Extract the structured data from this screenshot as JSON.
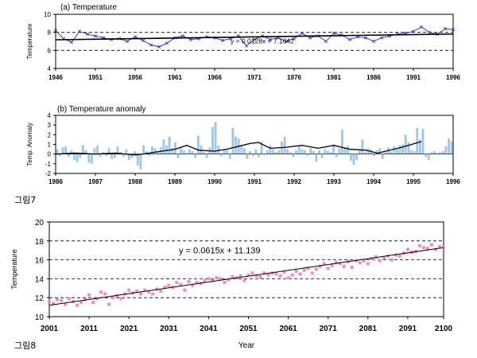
{
  "captions": {
    "fig7": "그림7",
    "fig8": "그림8"
  },
  "colors": {
    "series_a": "#3b3fa8",
    "trend": "#000000",
    "bar": "#9ec6e8",
    "running_mean": "#000000",
    "series_c": "#f08fbf"
  },
  "chart_data": [
    {
      "type": "line",
      "title": "(a)  Temperature",
      "xlabel": "",
      "ylabel": "Temperature",
      "xlim": [
        1946,
        1996
      ],
      "ylim": [
        4,
        10
      ],
      "yticks": [
        4,
        6,
        8,
        10
      ],
      "xticks": [
        "1946",
        "1951",
        "1956",
        "1961",
        "1966",
        "1971",
        "1976",
        "1981",
        "1986",
        "1991",
        "1996"
      ],
      "reference_lines": [
        6,
        8
      ],
      "equation": "y = 0.0128x + 7.1642",
      "trend": {
        "slope": 0.0128,
        "intercept": 7.1642
      },
      "series": [
        {
          "x": [
            1946,
            1947,
            1948,
            1949,
            1950,
            1951,
            1952,
            1953,
            1954,
            1955,
            1956,
            1957,
            1958,
            1959,
            1960,
            1961,
            1962,
            1963,
            1964,
            1965,
            1966,
            1967,
            1968,
            1969,
            1970,
            1971,
            1972,
            1973,
            1974,
            1975,
            1976,
            1977,
            1978,
            1979,
            1980,
            1981,
            1982,
            1983,
            1984,
            1985,
            1986,
            1987,
            1988,
            1989,
            1990,
            1991,
            1992,
            1993,
            1994,
            1995,
            1996
          ],
          "values": [
            8.2,
            7.3,
            6.9,
            8.1,
            7.8,
            7.6,
            7.4,
            7.2,
            7.3,
            7.0,
            7.5,
            7.1,
            6.6,
            6.4,
            6.8,
            7.4,
            7.6,
            7.2,
            7.3,
            7.5,
            7.4,
            7.1,
            7.3,
            7.6,
            6.5,
            7.2,
            7.6,
            7.2,
            7.4,
            7.0,
            7.3,
            7.9,
            7.4,
            7.6,
            7.0,
            7.9,
            7.7,
            7.2,
            7.5,
            7.4,
            7.0,
            7.4,
            7.6,
            7.8,
            7.9,
            8.1,
            8.6,
            8.0,
            7.8,
            8.4,
            8.3
          ]
        }
      ]
    },
    {
      "type": "bar",
      "title": "(b) Temperature anomaly",
      "xlabel": "",
      "ylabel": "Temp. Anomaly",
      "xlim": [
        1986,
        1996
      ],
      "ylim": [
        -2,
        4
      ],
      "yticks": [
        -2,
        -1,
        0,
        1,
        2,
        3,
        4
      ],
      "xticks": [
        "1986",
        "1987",
        "1988",
        "1989",
        "1990",
        "1991",
        "1992",
        "1993",
        "1994",
        "1995",
        "1996"
      ],
      "bar_values": [
        0.5,
        -0.2,
        0.7,
        0.8,
        -0.3,
        0.4,
        -0.6,
        -0.8,
        -0.4,
        0.9,
        0.4,
        -0.9,
        -1.0,
        0.6,
        0.9,
        -0.3,
        0.2,
        -0.2,
        0.6,
        -0.5,
        -0.4,
        0.8,
        0.2,
        -0.3,
        0.5,
        -0.6,
        -0.4,
        0.3,
        -1.2,
        -1.6,
        0.9,
        0.3,
        -0.2,
        0.8,
        0.6,
        0.3,
        0.7,
        1.5,
        0.9,
        1.8,
        0.6,
        1.2,
        -0.4,
        0.6,
        0.4,
        0.1,
        0.5,
        0.3,
        -0.4,
        1.9,
        0.9,
        0.2,
        -0.4,
        0.7,
        2.8,
        3.3,
        0.9,
        -0.2,
        0.5,
        0.4,
        -0.5,
        2.7,
        1.8,
        1.6,
        0.8,
        0.6,
        -0.5,
        0.3,
        -0.2,
        0.5,
        -0.3,
        1.3,
        -0.1,
        0.4,
        0.9,
        0.5,
        0.2,
        0.4,
        1.3,
        1.8,
        0.5,
        0.2,
        -0.3,
        0.4,
        0.8,
        0.5,
        0.4,
        -0.2,
        0.6,
        0.3,
        -0.8,
        0.4,
        -0.4,
        0.5,
        0.3,
        0.2,
        1.0,
        -0.3,
        0.6,
        2.5,
        0.7,
        0.9,
        -0.7,
        -1.1,
        -0.6,
        0.5,
        1.5,
        0.2,
        0.6,
        0.5,
        -0.2,
        0.4,
        0.6,
        -0.5,
        0.2,
        0.7,
        0.3,
        0.8,
        0.5,
        0.9,
        1.0,
        2.0,
        1.2,
        0.4,
        0.3,
        2.7,
        1.5,
        2.6,
        -0.3,
        -0.6,
        0.2,
        0.3,
        0.1,
        0.2,
        0.3,
        0.8,
        1.6,
        1.3
      ],
      "running_mean": {
        "x": [
          1986.0,
          1986.5,
          1987.0,
          1987.5,
          1988.0,
          1988.2,
          1988.5,
          1989.0,
          1989.3,
          1989.6,
          1990.0,
          1990.3,
          1990.6,
          1990.9,
          1991.1,
          1991.4,
          1991.8,
          1992.2,
          1992.6,
          1993.0,
          1993.4,
          1993.8,
          1994.1,
          1994.5,
          1994.8,
          1995.2
        ],
        "values": [
          0.0,
          0.1,
          0.0,
          0.1,
          -0.1,
          0.0,
          0.2,
          0.5,
          0.9,
          0.4,
          0.3,
          0.5,
          0.8,
          1.1,
          1.2,
          0.6,
          0.7,
          0.9,
          0.6,
          0.9,
          0.5,
          0.4,
          0.1,
          0.5,
          0.8,
          1.3
        ]
      }
    },
    {
      "type": "scatter",
      "title": "",
      "xlabel": "Year",
      "ylabel": "Temperature",
      "xlim": [
        2001,
        2100
      ],
      "ylim": [
        10,
        20
      ],
      "yticks": [
        10,
        12,
        14,
        16,
        18,
        20
      ],
      "xticks": [
        "2001",
        "2011",
        "2021",
        "2031",
        "2041",
        "2051",
        "2061",
        "2071",
        "2081",
        "2091",
        "2100"
      ],
      "grid": "horizontal dashed",
      "equation": "y = 0.0615x + 11.139",
      "trend": {
        "slope": 0.0615,
        "intercept": 11.139
      },
      "series": [
        {
          "x": [
            2001,
            2002,
            2003,
            2004,
            2005,
            2006,
            2007,
            2008,
            2009,
            2010,
            2011,
            2012,
            2013,
            2014,
            2015,
            2016,
            2017,
            2018,
            2019,
            2020,
            2021,
            2022,
            2023,
            2024,
            2025,
            2026,
            2027,
            2028,
            2029,
            2030,
            2031,
            2032,
            2033,
            2034,
            2035,
            2036,
            2037,
            2038,
            2039,
            2040,
            2041,
            2042,
            2043,
            2044,
            2045,
            2046,
            2047,
            2048,
            2049,
            2050,
            2051,
            2052,
            2053,
            2054,
            2055,
            2056,
            2057,
            2058,
            2059,
            2060,
            2061,
            2062,
            2063,
            2064,
            2065,
            2066,
            2067,
            2068,
            2069,
            2070,
            2071,
            2072,
            2073,
            2074,
            2075,
            2076,
            2077,
            2078,
            2079,
            2080,
            2081,
            2082,
            2083,
            2084,
            2085,
            2086,
            2087,
            2088,
            2089,
            2090,
            2091,
            2092,
            2093,
            2094,
            2095,
            2096,
            2097,
            2098,
            2099,
            2100
          ],
          "values": [
            11.6,
            11.4,
            11.8,
            11.7,
            11.3,
            11.9,
            11.6,
            11.2,
            11.5,
            11.8,
            12.3,
            11.5,
            11.9,
            12.6,
            12.4,
            11.3,
            12.0,
            12.2,
            11.9,
            12.4,
            12.8,
            12.5,
            12.7,
            12.4,
            12.8,
            12.6,
            12.4,
            12.9,
            12.7,
            13.1,
            13.3,
            13.1,
            13.6,
            13.4,
            12.8,
            13.7,
            13.3,
            13.6,
            13.5,
            13.8,
            14.0,
            13.8,
            14.1,
            14.0,
            13.6,
            13.9,
            14.2,
            14.1,
            14.3,
            13.8,
            14.4,
            14.6,
            14.3,
            14.2,
            14.6,
            14.4,
            14.6,
            14.5,
            14.3,
            14.7,
            14.1,
            14.4,
            14.8,
            14.5,
            14.9,
            15.1,
            14.6,
            15.0,
            15.3,
            15.6,
            15.1,
            15.4,
            15.7,
            15.6,
            15.3,
            15.8,
            15.2,
            15.9,
            15.7,
            15.9,
            15.6,
            16.1,
            16.3,
            15.9,
            16.2,
            16.4,
            16.0,
            16.5,
            16.4,
            16.7,
            17.1,
            16.8,
            16.9,
            17.5,
            17.3,
            17.2,
            17.6,
            17.1,
            17.4,
            17.3
          ]
        }
      ]
    }
  ]
}
